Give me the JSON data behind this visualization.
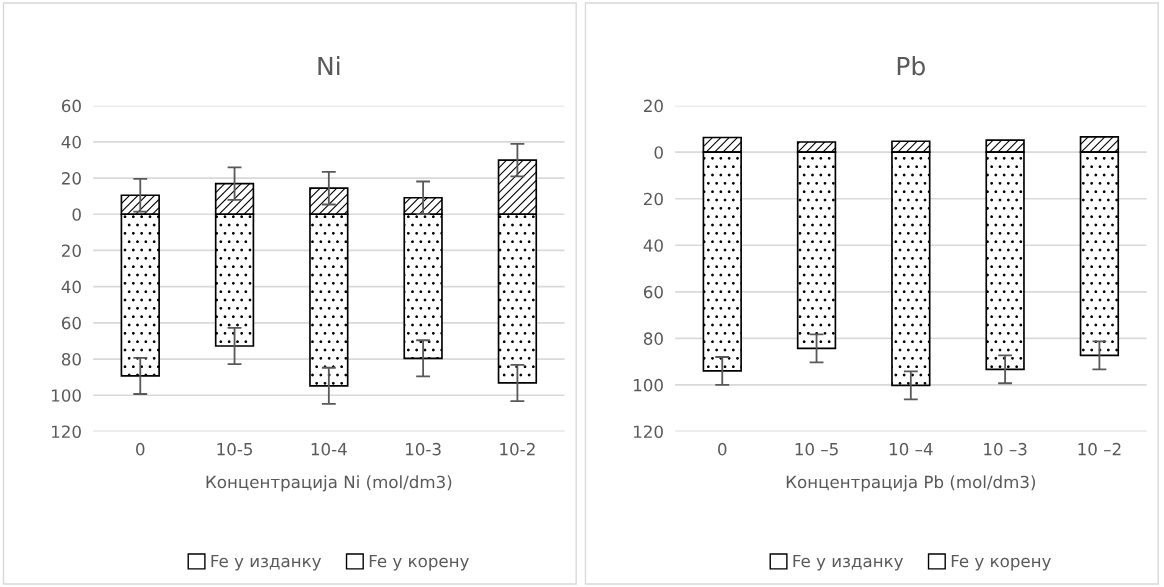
{
  "chart_data": [
    {
      "type": "bar",
      "title": "Ni",
      "xlabel": "Концентрација Ni (mol/dm3)",
      "categories": [
        "0",
        "10-5",
        "10-4",
        "10-3",
        "10-2"
      ],
      "stacked": true,
      "series": [
        {
          "name": "Fe у изданку",
          "color": "#ffffff",
          "values": [
            10.5,
            16.9,
            14.4,
            9.1,
            29.9
          ],
          "errors": [
            9,
            9,
            9,
            9,
            9
          ]
        },
        {
          "name": "Fe у корену",
          "color": "#ffffff",
          "values": [
            -89.3,
            -72.8,
            -94.8,
            -79.6,
            -93.2
          ],
          "errors": [
            10,
            10,
            10,
            10,
            10
          ]
        }
      ],
      "ylim": [
        -120,
        60
      ],
      "yticks": [
        {
          "value": -120,
          "label": "120"
        },
        {
          "value": -100,
          "label": "100"
        },
        {
          "value": -80,
          "label": "80"
        },
        {
          "value": -60,
          "label": "60"
        },
        {
          "value": -40,
          "label": "40"
        },
        {
          "value": -20,
          "label": "20"
        },
        0,
        20,
        40,
        60
      ],
      "grid": "y",
      "legend": "bottom"
    },
    {
      "type": "bar",
      "title": "Pb",
      "xlabel": "Концентрација Pb (mol/dm3)",
      "categories": [
        "0",
        "10 –5",
        "10 –4",
        "10 –3",
        "10 –2"
      ],
      "stacked": true,
      "series": [
        {
          "name": "Fe у изданку",
          "color": "#ffffff",
          "values": [
            6.3,
            4.4,
            4.7,
            5.2,
            6.6
          ]
        },
        {
          "name": "Fe у корену",
          "color": "#ffffff",
          "values": [
            -94.0,
            -84.3,
            -100.2,
            -93.3,
            -87.3
          ],
          "errors": [
            6,
            6,
            6,
            6,
            6
          ]
        }
      ],
      "ylim": [
        -120,
        20
      ],
      "yticks": [
        {
          "value": -120,
          "label": "120"
        },
        {
          "value": -100,
          "label": "100"
        },
        {
          "value": -80,
          "label": "80"
        },
        {
          "value": -60,
          "label": "60"
        },
        {
          "value": -40,
          "label": "40"
        },
        {
          "value": -20,
          "label": "20"
        },
        0,
        20
      ],
      "grid": "y",
      "legend": "bottom"
    }
  ]
}
